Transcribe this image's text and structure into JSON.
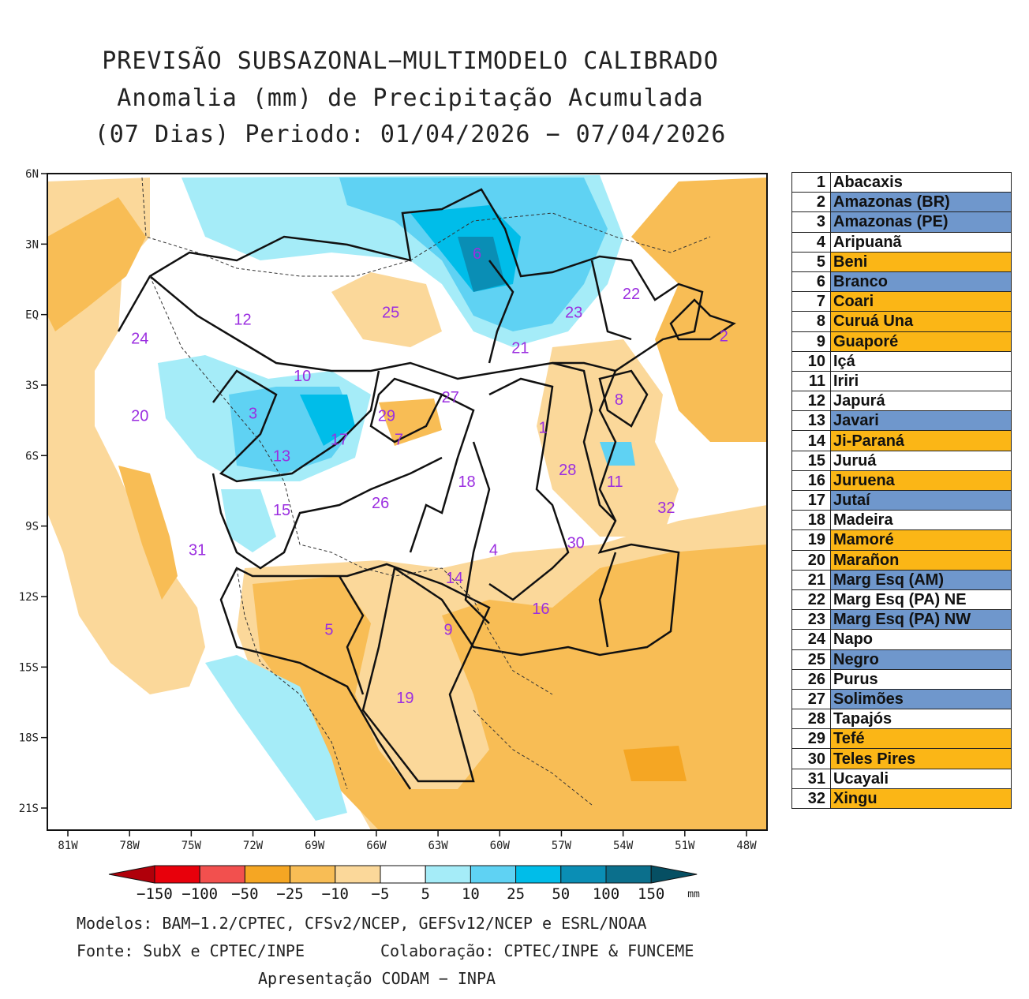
{
  "title": {
    "line1": "PREVISÃO SUBSAZONAL−MULTIMODELO CALIBRADO",
    "line2": "Anomalia (mm) de Precipitação Acumulada",
    "line3": "(07 Dias) Periodo: 01/04/2026 − 07/04/2026"
  },
  "map": {
    "lat_labels": [
      "6N",
      "3N",
      "EQ",
      "3S",
      "6S",
      "9S",
      "12S",
      "15S",
      "18S",
      "21S"
    ],
    "lon_labels": [
      "81W",
      "78W",
      "75W",
      "72W",
      "69W",
      "66W",
      "63W",
      "60W",
      "57W",
      "54W",
      "51W",
      "48W"
    ],
    "basin_numbers": [
      {
        "n": "1",
        "lon": -57.9,
        "lat": -4.8
      },
      {
        "n": "2",
        "lon": -49.1,
        "lat": -0.9
      },
      {
        "n": "3",
        "lon": -72.0,
        "lat": -4.2
      },
      {
        "n": "4",
        "lon": -60.3,
        "lat": -10.0
      },
      {
        "n": "5",
        "lon": -68.3,
        "lat": -13.4
      },
      {
        "n": "6",
        "lon": -61.1,
        "lat": 2.6
      },
      {
        "n": "7",
        "lon": -64.9,
        "lat": -5.3
      },
      {
        "n": "8",
        "lon": -54.2,
        "lat": -3.6
      },
      {
        "n": "9",
        "lon": -62.5,
        "lat": -13.4
      },
      {
        "n": "10",
        "lon": -69.6,
        "lat": -2.6
      },
      {
        "n": "11",
        "lon": -54.4,
        "lat": -7.1
      },
      {
        "n": "12",
        "lon": -72.5,
        "lat": -0.2
      },
      {
        "n": "13",
        "lon": -70.6,
        "lat": -6.0
      },
      {
        "n": "14",
        "lon": -62.2,
        "lat": -11.2
      },
      {
        "n": "15",
        "lon": -70.6,
        "lat": -8.3
      },
      {
        "n": "16",
        "lon": -58.0,
        "lat": -12.5
      },
      {
        "n": "17",
        "lon": -67.8,
        "lat": -5.3
      },
      {
        "n": "18",
        "lon": -61.6,
        "lat": -7.1
      },
      {
        "n": "19",
        "lon": -64.6,
        "lat": -16.3
      },
      {
        "n": "20",
        "lon": -77.5,
        "lat": -4.3
      },
      {
        "n": "21",
        "lon": -59.0,
        "lat": -1.4
      },
      {
        "n": "22",
        "lon": -53.6,
        "lat": 0.9
      },
      {
        "n": "23",
        "lon": -56.4,
        "lat": 0.1
      },
      {
        "n": "24",
        "lon": -77.5,
        "lat": -1.0
      },
      {
        "n": "25",
        "lon": -65.3,
        "lat": 0.1
      },
      {
        "n": "26",
        "lon": -65.8,
        "lat": -8.0
      },
      {
        "n": "27",
        "lon": -62.4,
        "lat": -3.5
      },
      {
        "n": "28",
        "lon": -56.7,
        "lat": -6.6
      },
      {
        "n": "29",
        "lon": -65.5,
        "lat": -4.3
      },
      {
        "n": "30",
        "lon": -56.3,
        "lat": -9.7
      },
      {
        "n": "31",
        "lon": -74.7,
        "lat": -10.0
      },
      {
        "n": "32",
        "lon": -51.9,
        "lat": -8.2
      }
    ]
  },
  "colorbar": {
    "labels": [
      "−150",
      "−100",
      "−50",
      "−25",
      "−10",
      "−5",
      "5",
      "10",
      "25",
      "50",
      "100",
      "150"
    ],
    "unit": "mm",
    "colors": [
      "#e8000b",
      "#f2504e",
      "#f5a623",
      "#f8bd55",
      "#fbd89a",
      "#ffffff",
      "#a5ecf8",
      "#5fd2f3",
      "#00bde9",
      "#0a8eb5",
      "#0b6f8c"
    ],
    "low_end_color": "#b0000a",
    "high_end_color": "#064f63"
  },
  "basins_table": [
    {
      "num": "1",
      "name": "Abacaxis",
      "status": "neutral"
    },
    {
      "num": "2",
      "name": "Amazonas (BR)",
      "status": "wet"
    },
    {
      "num": "3",
      "name": "Amazonas (PE)",
      "status": "wet"
    },
    {
      "num": "4",
      "name": "Aripuanã",
      "status": "neutral"
    },
    {
      "num": "5",
      "name": "Beni",
      "status": "dry"
    },
    {
      "num": "6",
      "name": "Branco",
      "status": "wet"
    },
    {
      "num": "7",
      "name": "Coari",
      "status": "dry"
    },
    {
      "num": "8",
      "name": "Curuá Una",
      "status": "dry"
    },
    {
      "num": "9",
      "name": "Guaporé",
      "status": "dry"
    },
    {
      "num": "10",
      "name": "Içá",
      "status": "neutral"
    },
    {
      "num": "11",
      "name": "Iriri",
      "status": "neutral"
    },
    {
      "num": "12",
      "name": "Japurá",
      "status": "neutral"
    },
    {
      "num": "13",
      "name": "Javari",
      "status": "wet"
    },
    {
      "num": "14",
      "name": "Ji-Paraná",
      "status": "dry"
    },
    {
      "num": "15",
      "name": "Juruá",
      "status": "neutral"
    },
    {
      "num": "16",
      "name": "Juruena",
      "status": "dry"
    },
    {
      "num": "17",
      "name": "Jutaí",
      "status": "wet"
    },
    {
      "num": "18",
      "name": "Madeira",
      "status": "neutral"
    },
    {
      "num": "19",
      "name": "Mamoré",
      "status": "dry"
    },
    {
      "num": "20",
      "name": "Marañon",
      "status": "dry"
    },
    {
      "num": "21",
      "name": "Marg Esq (AM)",
      "status": "wet"
    },
    {
      "num": "22",
      "name": "Marg Esq (PA) NE",
      "status": "neutral"
    },
    {
      "num": "23",
      "name": "Marg Esq (PA) NW",
      "status": "wet"
    },
    {
      "num": "24",
      "name": "Napo",
      "status": "neutral"
    },
    {
      "num": "25",
      "name": "Negro",
      "status": "wet"
    },
    {
      "num": "26",
      "name": "Purus",
      "status": "neutral"
    },
    {
      "num": "27",
      "name": "Solimões",
      "status": "wet"
    },
    {
      "num": "28",
      "name": "Tapajós",
      "status": "neutral"
    },
    {
      "num": "29",
      "name": "Tefé",
      "status": "dry"
    },
    {
      "num": "30",
      "name": "Teles Pires",
      "status": "dry"
    },
    {
      "num": "31",
      "name": "Ucayali",
      "status": "neutral"
    },
    {
      "num": "32",
      "name": "Xingu",
      "status": "dry"
    }
  ],
  "status_colors": {
    "neutral": "#ffffff",
    "wet": "#6f97cc",
    "dry": "#fbb616"
  },
  "footer": {
    "models": "Modelos: BAM−1.2/CPTEC, CFSv2/NCEP, GEFSv12/NCEP e ESRL/NOAA",
    "source": "Fonte: SubX e CPTEC/INPE",
    "collab": "Colaboração: CPTEC/INPE & FUNCEME",
    "presentation": "Apresentação CODAM − INPA"
  }
}
